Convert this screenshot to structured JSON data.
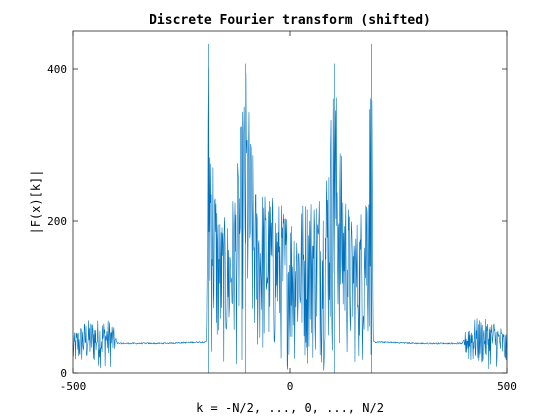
{
  "chart_data": {
    "type": "line",
    "title": "Discrete Fourier transform (shifted)",
    "xlabel": "k = -N/2, ..., 0, ..., N/2",
    "ylabel": "|F(x)[k]|",
    "xlim": [
      -500,
      500
    ],
    "ylim": [
      0,
      450
    ],
    "xticks": [
      -500,
      0,
      500
    ],
    "xtick_labels": [
      "-500",
      "0",
      "500"
    ],
    "yticks": [
      0,
      200,
      400
    ],
    "ytick_labels": [
      "0",
      "200",
      "400"
    ],
    "grid": false,
    "legend": "none",
    "series": [
      {
        "name": "",
        "color": "#0072BD",
        "n_points": 1000,
        "envelope": [
          {
            "k": -500,
            "max": 50,
            "min": 0
          },
          {
            "k": -490,
            "max": 60,
            "min": 5
          },
          {
            "k": -470,
            "max": 70,
            "min": 5
          },
          {
            "k": -430,
            "max": 72,
            "min": 5
          },
          {
            "k": -410,
            "max": 70,
            "min": 5
          },
          {
            "k": -398,
            "max": 40,
            "min": 38
          },
          {
            "k": -300,
            "max": 40,
            "min": 38
          },
          {
            "k": -192,
            "max": 42,
            "min": 40
          },
          {
            "k": -190,
            "max": 300,
            "min": 2
          },
          {
            "k": -188,
            "max": 433,
            "min": 2
          },
          {
            "k": -175,
            "max": 270,
            "min": 2
          },
          {
            "k": -160,
            "max": 205,
            "min": 2
          },
          {
            "k": -140,
            "max": 205,
            "min": 2
          },
          {
            "k": -120,
            "max": 280,
            "min": 2
          },
          {
            "k": -102,
            "max": 407,
            "min": 2
          },
          {
            "k": -80,
            "max": 250,
            "min": 2
          },
          {
            "k": -50,
            "max": 240,
            "min": 2
          },
          {
            "k": -20,
            "max": 225,
            "min": 2
          },
          {
            "k": 0,
            "max": 215,
            "min": 2
          },
          {
            "k": 20,
            "max": 225,
            "min": 2
          },
          {
            "k": 50,
            "max": 240,
            "min": 2
          },
          {
            "k": 80,
            "max": 250,
            "min": 2
          },
          {
            "k": 102,
            "max": 407,
            "min": 2
          },
          {
            "k": 120,
            "max": 280,
            "min": 2
          },
          {
            "k": 140,
            "max": 205,
            "min": 2
          },
          {
            "k": 160,
            "max": 205,
            "min": 2
          },
          {
            "k": 175,
            "max": 270,
            "min": 2
          },
          {
            "k": 188,
            "max": 433,
            "min": 2
          },
          {
            "k": 190,
            "max": 300,
            "min": 2
          },
          {
            "k": 192,
            "max": 42,
            "min": 40
          },
          {
            "k": 300,
            "max": 40,
            "min": 38
          },
          {
            "k": 398,
            "max": 40,
            "min": 38
          },
          {
            "k": 410,
            "max": 70,
            "min": 5
          },
          {
            "k": 430,
            "max": 72,
            "min": 5
          },
          {
            "k": 470,
            "max": 70,
            "min": 5
          },
          {
            "k": 490,
            "max": 60,
            "min": 5
          },
          {
            "k": 500,
            "max": 50,
            "min": 0
          }
        ],
        "peaks": [
          {
            "k": -188,
            "value": 433
          },
          {
            "k": -102,
            "value": 407
          },
          {
            "k": 102,
            "value": 407
          },
          {
            "k": 188,
            "value": 433
          }
        ]
      }
    ]
  }
}
